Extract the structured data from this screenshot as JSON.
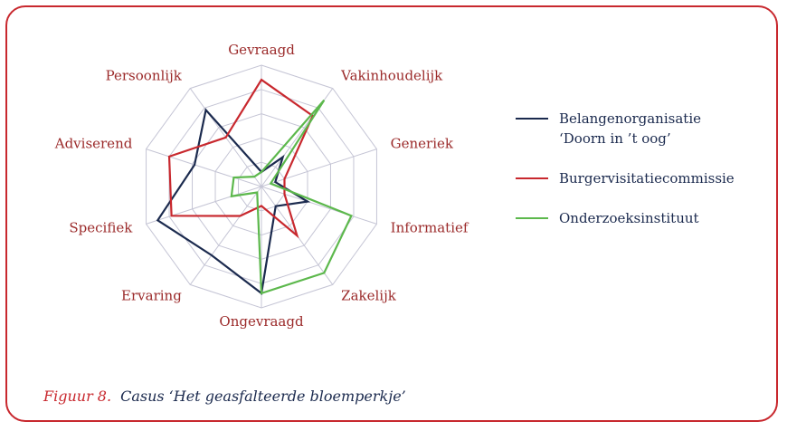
{
  "chart_data": {
    "type": "radar",
    "categories": [
      "Gevraagd",
      "Vakinhoudelijk",
      "Generiek",
      "Informatief",
      "Zakelijk",
      "Ongevraagd",
      "Ervaring",
      "Specifiek",
      "Adviserend",
      "Persoonlijk"
    ],
    "rlim": [
      0,
      5
    ],
    "rticks": [
      1,
      2,
      3,
      4,
      5
    ],
    "grid": true,
    "series": [
      {
        "name": "Belangenorganisatie\n‘Doorn in ’t oog’",
        "color": "#1b2a4e",
        "values": [
          0.6,
          1.5,
          0.6,
          2,
          1,
          4.4,
          3.5,
          4.5,
          2.9,
          3.9
        ]
      },
      {
        "name": "Burgervisitatiecommissie",
        "color": "#c8282e",
        "values": [
          4.4,
          3.6,
          1,
          1,
          2.5,
          0.8,
          1.5,
          3.9,
          4,
          2.5
        ]
      },
      {
        "name": "Onderzoeksinstituut",
        "color": "#5cb84c",
        "values": [
          0.6,
          4.4,
          0.4,
          3.9,
          4.4,
          4.4,
          0.3,
          1.3,
          1.2,
          0.5
        ]
      }
    ],
    "caption": {
      "label": "Figuur 8.",
      "text": "Casus ‘Het geasfalteerde bloemperkje’"
    }
  }
}
